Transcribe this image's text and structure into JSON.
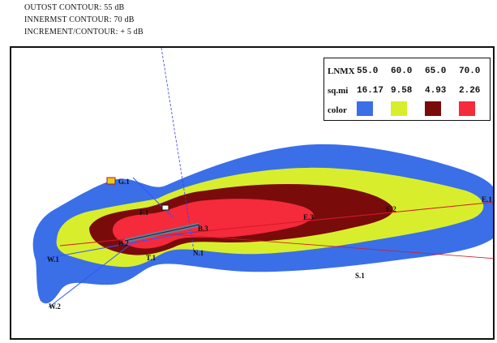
{
  "header": {
    "line1": "OUTOST CONTOUR: 55 dB",
    "line2": "INNERMST CONTOUR: 70 dB",
    "line3": "INCREMENT/CONTOUR: + 5 dB"
  },
  "legend": {
    "row1_label": "LNMX",
    "row2_label": "sq.mi",
    "row3_label": "color",
    "levels": [
      "55.0",
      "60.0",
      "65.0",
      "70.0"
    ],
    "areas": [
      "16.17",
      "9.58",
      "4.93",
      "2.26"
    ],
    "colors": [
      "#3a6fe8",
      "#d8ee2c",
      "#7a0b0b",
      "#f52a3a"
    ]
  },
  "map_labels": {
    "east_end": "E.1",
    "e2": "E.2",
    "e3": "E.3",
    "south": "S.1",
    "west": "W.1",
    "sw": "W.2",
    "b2": "B.2",
    "b3": "B.3",
    "g1": "G.1",
    "f1": "F.1",
    "t1": "T.1",
    "n1": "N.1"
  }
}
